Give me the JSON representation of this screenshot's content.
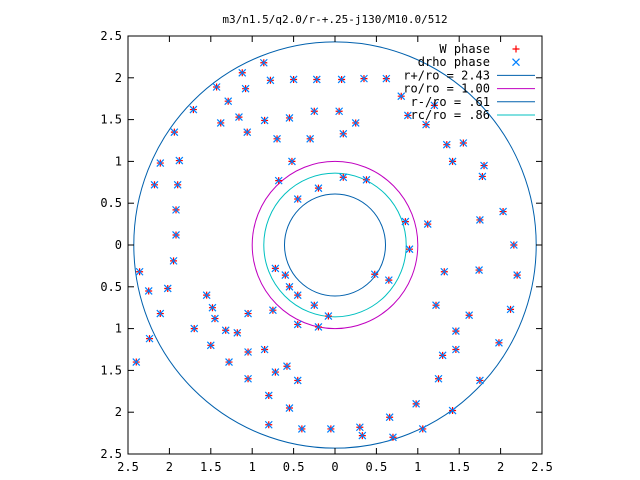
{
  "chart_data": {
    "type": "scatter",
    "title": "m3/n1.5/q2.0/r-+.25-j130/M10.0/512",
    "xlim": [
      -2.5,
      2.5
    ],
    "ylim": [
      -2.5,
      2.5
    ],
    "x_ticks": [
      -2.5,
      -2,
      -1.5,
      -1,
      -0.5,
      0,
      0.5,
      1,
      1.5,
      2,
      2.5
    ],
    "y_ticks": [
      -2.5,
      -2,
      -1.5,
      -1,
      -0.5,
      0,
      0.5,
      1,
      1.5,
      2,
      2.5
    ],
    "x_tick_labels": [
      "2.5",
      "2",
      "1.5",
      "1",
      "0.5",
      "0",
      "0.5",
      "1",
      "1.5",
      "2",
      "2.5"
    ],
    "y_tick_labels": [
      "2.5",
      "2",
      "1.5",
      "1",
      "0.5",
      "0",
      "0.5",
      "1",
      "1.5",
      "2",
      "2.5"
    ],
    "legend_position": "top-right",
    "series": [
      {
        "name": "W phase",
        "kind": "points",
        "marker": "plus",
        "color": "#ff0000",
        "points": [
          [
            -2.18,
            0.72
          ],
          [
            -2.11,
            0.98
          ],
          [
            -1.94,
            1.35
          ],
          [
            -1.71,
            1.62
          ],
          [
            -1.43,
            1.89
          ],
          [
            -1.12,
            2.06
          ],
          [
            -0.86,
            2.18
          ],
          [
            -1.88,
            1.01
          ],
          [
            -1.9,
            0.72
          ],
          [
            -1.92,
            0.42
          ],
          [
            -1.92,
            0.12
          ],
          [
            -1.95,
            -0.19
          ],
          [
            -2.02,
            -0.52
          ],
          [
            -2.11,
            -0.82
          ],
          [
            -2.24,
            -1.12
          ],
          [
            -2.4,
            -1.4
          ],
          [
            -1.38,
            1.46
          ],
          [
            -1.29,
            1.72
          ],
          [
            -1.08,
            1.87
          ],
          [
            -0.78,
            1.97
          ],
          [
            -0.5,
            1.98
          ],
          [
            -0.22,
            1.98
          ],
          [
            0.08,
            1.98
          ],
          [
            0.35,
            1.99
          ],
          [
            0.62,
            1.99
          ],
          [
            -1.16,
            1.53
          ],
          [
            -0.85,
            1.49
          ],
          [
            -0.55,
            1.52
          ],
          [
            -0.25,
            1.6
          ],
          [
            0.05,
            1.6
          ],
          [
            0.25,
            1.46
          ],
          [
            0.1,
            1.33
          ],
          [
            -0.3,
            1.27
          ],
          [
            -0.7,
            1.27
          ],
          [
            -1.06,
            1.35
          ],
          [
            -0.52,
            1.0
          ],
          [
            -0.68,
            0.77
          ],
          [
            -0.45,
            0.55
          ],
          [
            -0.2,
            0.68
          ],
          [
            0.1,
            0.81
          ],
          [
            0.38,
            0.78
          ],
          [
            0.8,
            1.78
          ],
          [
            1.2,
            1.67
          ],
          [
            1.55,
            1.22
          ],
          [
            1.78,
            0.82
          ],
          [
            2.03,
            0.4
          ],
          [
            2.16,
            0.0
          ],
          [
            2.2,
            -0.36
          ],
          [
            2.12,
            -0.77
          ],
          [
            1.98,
            -1.17
          ],
          [
            1.75,
            -1.62
          ],
          [
            1.42,
            -1.98
          ],
          [
            1.06,
            -2.2
          ],
          [
            0.7,
            -2.3
          ],
          [
            0.33,
            -2.28
          ],
          [
            1.8,
            0.95
          ],
          [
            1.75,
            0.3
          ],
          [
            1.74,
            -0.3
          ],
          [
            1.62,
            -0.84
          ],
          [
            1.46,
            -1.25
          ],
          [
            1.25,
            -1.6
          ],
          [
            0.98,
            -1.9
          ],
          [
            0.66,
            -2.06
          ],
          [
            0.3,
            -2.18
          ],
          [
            -0.05,
            -2.2
          ],
          [
            -0.4,
            -2.2
          ],
          [
            -0.8,
            -2.15
          ],
          [
            1.12,
            0.25
          ],
          [
            1.32,
            -0.32
          ],
          [
            1.22,
            -0.72
          ],
          [
            1.3,
            -1.32
          ],
          [
            1.46,
            -1.03
          ],
          [
            0.85,
            0.28
          ],
          [
            0.9,
            -0.05
          ],
          [
            0.65,
            -0.42
          ],
          [
            0.48,
            -0.35
          ],
          [
            -2.36,
            -0.32
          ],
          [
            -2.25,
            -0.55
          ],
          [
            -1.7,
            -1.0
          ],
          [
            -1.5,
            -1.2
          ],
          [
            -1.28,
            -1.4
          ],
          [
            -1.05,
            -1.6
          ],
          [
            -0.8,
            -1.8
          ],
          [
            -0.55,
            -1.95
          ],
          [
            -1.55,
            -0.6
          ],
          [
            -1.45,
            -0.88
          ],
          [
            -1.18,
            -1.05
          ],
          [
            -0.85,
            -1.25
          ],
          [
            -0.58,
            -1.45
          ],
          [
            -0.45,
            -1.62
          ],
          [
            -0.72,
            -1.52
          ],
          [
            -1.05,
            -1.28
          ],
          [
            -1.32,
            -1.02
          ],
          [
            -1.48,
            -0.75
          ],
          [
            -1.05,
            -0.82
          ],
          [
            -0.75,
            -0.78
          ],
          [
            -0.45,
            -0.95
          ],
          [
            -0.2,
            -0.98
          ],
          [
            -0.08,
            -0.85
          ],
          [
            -0.25,
            -0.72
          ],
          [
            -0.45,
            -0.6
          ],
          [
            -0.55,
            -0.5
          ],
          [
            -0.6,
            -0.36
          ],
          [
            -0.72,
            -0.28
          ],
          [
            1.42,
            1.0
          ],
          [
            1.35,
            1.2
          ],
          [
            1.1,
            1.44
          ],
          [
            0.88,
            1.55
          ]
        ]
      },
      {
        "name": "drho phase",
        "kind": "points",
        "marker": "cross",
        "color": "#0080ff",
        "points": [
          [
            -2.18,
            0.72
          ],
          [
            -2.11,
            0.98
          ],
          [
            -1.94,
            1.35
          ],
          [
            -1.71,
            1.62
          ],
          [
            -1.43,
            1.89
          ],
          [
            -1.12,
            2.06
          ],
          [
            -0.86,
            2.18
          ],
          [
            -1.88,
            1.01
          ],
          [
            -1.9,
            0.72
          ],
          [
            -1.92,
            0.42
          ],
          [
            -1.92,
            0.12
          ],
          [
            -1.95,
            -0.19
          ],
          [
            -2.02,
            -0.52
          ],
          [
            -2.11,
            -0.82
          ],
          [
            -2.24,
            -1.12
          ],
          [
            -2.4,
            -1.4
          ],
          [
            -1.38,
            1.46
          ],
          [
            -1.29,
            1.72
          ],
          [
            -1.08,
            1.87
          ],
          [
            -0.78,
            1.97
          ],
          [
            -0.5,
            1.98
          ],
          [
            -0.22,
            1.98
          ],
          [
            0.08,
            1.98
          ],
          [
            0.35,
            1.99
          ],
          [
            0.62,
            1.99
          ],
          [
            -1.16,
            1.53
          ],
          [
            -0.85,
            1.49
          ],
          [
            -0.55,
            1.52
          ],
          [
            -0.25,
            1.6
          ],
          [
            0.05,
            1.6
          ],
          [
            0.25,
            1.46
          ],
          [
            0.1,
            1.33
          ],
          [
            -0.3,
            1.27
          ],
          [
            -0.7,
            1.27
          ],
          [
            -1.06,
            1.35
          ],
          [
            -0.52,
            1.0
          ],
          [
            -0.68,
            0.77
          ],
          [
            -0.45,
            0.55
          ],
          [
            -0.2,
            0.68
          ],
          [
            0.1,
            0.81
          ],
          [
            0.38,
            0.78
          ],
          [
            0.8,
            1.78
          ],
          [
            1.2,
            1.67
          ],
          [
            1.55,
            1.22
          ],
          [
            1.78,
            0.82
          ],
          [
            2.03,
            0.4
          ],
          [
            2.16,
            0.0
          ],
          [
            2.2,
            -0.36
          ],
          [
            2.12,
            -0.77
          ],
          [
            1.98,
            -1.17
          ],
          [
            1.75,
            -1.62
          ],
          [
            1.42,
            -1.98
          ],
          [
            1.06,
            -2.2
          ],
          [
            0.7,
            -2.3
          ],
          [
            0.33,
            -2.28
          ],
          [
            1.8,
            0.95
          ],
          [
            1.75,
            0.3
          ],
          [
            1.74,
            -0.3
          ],
          [
            1.62,
            -0.84
          ],
          [
            1.46,
            -1.25
          ],
          [
            1.25,
            -1.6
          ],
          [
            0.98,
            -1.9
          ],
          [
            0.66,
            -2.06
          ],
          [
            0.3,
            -2.18
          ],
          [
            -0.05,
            -2.2
          ],
          [
            -0.4,
            -2.2
          ],
          [
            -0.8,
            -2.15
          ],
          [
            1.12,
            0.25
          ],
          [
            1.32,
            -0.32
          ],
          [
            1.22,
            -0.72
          ],
          [
            1.3,
            -1.32
          ],
          [
            1.46,
            -1.03
          ],
          [
            0.85,
            0.28
          ],
          [
            0.9,
            -0.05
          ],
          [
            0.65,
            -0.42
          ],
          [
            0.48,
            -0.35
          ],
          [
            -2.36,
            -0.32
          ],
          [
            -2.25,
            -0.55
          ],
          [
            -1.7,
            -1.0
          ],
          [
            -1.5,
            -1.2
          ],
          [
            -1.28,
            -1.4
          ],
          [
            -1.05,
            -1.6
          ],
          [
            -0.8,
            -1.8
          ],
          [
            -0.55,
            -1.95
          ],
          [
            -1.55,
            -0.6
          ],
          [
            -1.45,
            -0.88
          ],
          [
            -1.18,
            -1.05
          ],
          [
            -0.85,
            -1.25
          ],
          [
            -0.58,
            -1.45
          ],
          [
            -0.45,
            -1.62
          ],
          [
            -0.72,
            -1.52
          ],
          [
            -1.05,
            -1.28
          ],
          [
            -1.32,
            -1.02
          ],
          [
            -1.48,
            -0.75
          ],
          [
            -1.05,
            -0.82
          ],
          [
            -0.75,
            -0.78
          ],
          [
            -0.45,
            -0.95
          ],
          [
            -0.2,
            -0.98
          ],
          [
            -0.08,
            -0.85
          ],
          [
            -0.25,
            -0.72
          ],
          [
            -0.45,
            -0.6
          ],
          [
            -0.55,
            -0.5
          ],
          [
            -0.6,
            -0.36
          ],
          [
            -0.72,
            -0.28
          ],
          [
            1.42,
            1.0
          ],
          [
            1.35,
            1.2
          ],
          [
            1.1,
            1.44
          ],
          [
            0.88,
            1.55
          ]
        ]
      },
      {
        "name": "r+/ro = 2.43",
        "kind": "circle",
        "radius": 2.43,
        "color": "#0060ad"
      },
      {
        "name": "ro/ro = 1.00",
        "kind": "circle",
        "radius": 1.0,
        "color": "#c000c0"
      },
      {
        "name": "r-/ro = .61",
        "kind": "circle",
        "radius": 0.61,
        "color": "#0060ad"
      },
      {
        "name": "rc/ro = .86",
        "kind": "circle",
        "radius": 0.86,
        "color": "#00c0c0"
      }
    ]
  }
}
